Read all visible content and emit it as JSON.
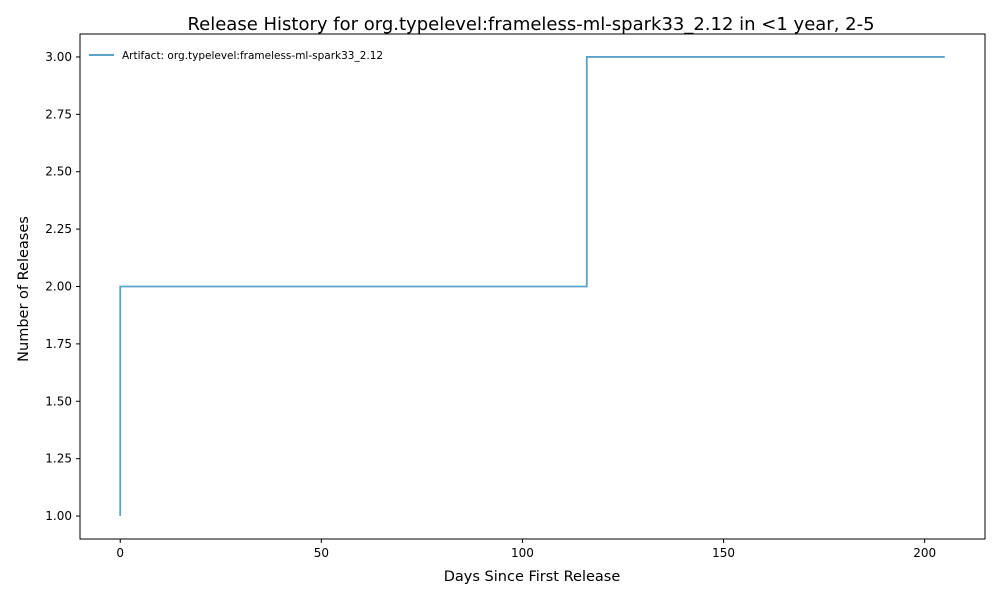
{
  "chart_data": {
    "type": "line",
    "drawstyle": "steps-post",
    "title": "Release History for org.typelevel:frameless-ml-spark33_2.12 in <1 year, 2-5",
    "xlabel": "Days Since First Release",
    "ylabel": "Number of Releases",
    "xlim": [
      -10,
      215
    ],
    "ylim": [
      0.9,
      3.1
    ],
    "xticks": [
      0,
      50,
      100,
      150,
      200
    ],
    "xtick_labels": [
      "0",
      "50",
      "100",
      "150",
      "200"
    ],
    "yticks": [
      1.0,
      1.25,
      1.5,
      1.75,
      2.0,
      2.25,
      2.5,
      2.75,
      3.0
    ],
    "ytick_labels": [
      "1.00",
      "1.25",
      "1.50",
      "1.75",
      "2.00",
      "2.25",
      "2.50",
      "2.75",
      "3.00"
    ],
    "grid": false,
    "legend_position": "top-left",
    "series": [
      {
        "name": "Artifact: org.typelevel:frameless-ml-spark33_2.12",
        "color": "#5ba3c9",
        "x": [
          0,
          0,
          116,
          205
        ],
        "y": [
          1,
          2,
          3,
          3
        ]
      }
    ]
  }
}
